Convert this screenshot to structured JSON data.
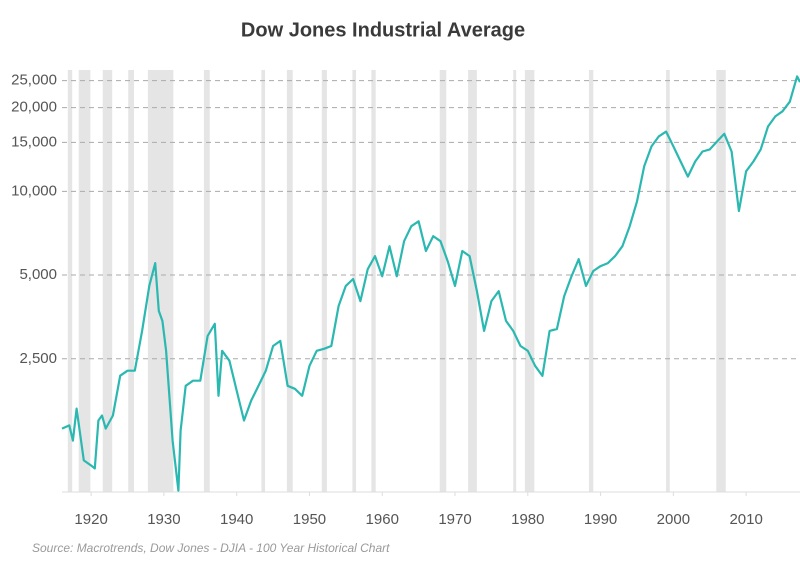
{
  "chart_data": {
    "type": "line",
    "title": "Dow Jones Industrial Average",
    "source": "Source: Macrotrends, Dow Jones - DJIA - 100 Year Historical Chart",
    "color": "#2bb8b1",
    "recession_color": "#e5e5e5",
    "log_scale": true,
    "grid": true,
    "x": [
      1916.0,
      1917.0,
      1917.5,
      1918.0,
      1919.0,
      1920.0,
      1920.5,
      1921.0,
      1921.5,
      1922.0,
      1923.0,
      1924.0,
      1925.0,
      1926.0,
      1927.0,
      1928.0,
      1928.8,
      1929.3,
      1929.8,
      1930.3,
      1931.2,
      1932.0,
      1932.3,
      1933.0,
      1934.0,
      1935.0,
      1936.0,
      1937.0,
      1937.5,
      1938.0,
      1939.0,
      1940.0,
      1941.0,
      1942.0,
      1943.0,
      1944.0,
      1945.0,
      1946.0,
      1947.0,
      1948.0,
      1949.0,
      1950.0,
      1951.0,
      1952.0,
      1953.0,
      1954.0,
      1955.0,
      1956.0,
      1957.0,
      1958.0,
      1959.0,
      1960.0,
      1961.0,
      1962.0,
      1963.0,
      1964.0,
      1965.0,
      1966.0,
      1967.0,
      1968.0,
      1969.0,
      1970.0,
      1971.0,
      1972.0,
      1973.0,
      1974.0,
      1975.0,
      1976.0,
      1977.0,
      1978.0,
      1979.0,
      1980.0,
      1981.0,
      1982.0,
      1983.0,
      1984.0,
      1985.0,
      1986.0,
      1987.0,
      1988.0,
      1989.0,
      1990.0,
      1991.0,
      1992.0,
      1993.0,
      1994.0,
      1995.0,
      1996.0,
      1997.0,
      1998.0,
      1999.0,
      2000.0,
      2001.0,
      2002.0,
      2003.0,
      2004.0,
      2005.0,
      2006.0,
      2007.0,
      2008.0,
      2009.0,
      2010.0,
      2011.0,
      2012.0,
      2013.0,
      2014.0,
      2015.0,
      2016.0,
      2017.0,
      2017.4
    ],
    "values": [
      1403,
      1440,
      1270,
      1655,
      1078,
      1034,
      1009,
      1500,
      1563,
      1403,
      1563,
      2173,
      2265,
      2265,
      3150,
      4570,
      5520,
      3715,
      3420,
      2670,
      1270,
      840,
      1380,
      2000,
      2085,
      2085,
      3020,
      3340,
      1840,
      2670,
      2460,
      1920,
      1500,
      1770,
      2000,
      2265,
      2780,
      2900,
      2000,
      1950,
      1840,
      2360,
      2670,
      2715,
      2780,
      3870,
      4570,
      4840,
      4030,
      5250,
      5850,
      4950,
      6350,
      4950,
      6615,
      7490,
      7800,
      6100,
      6900,
      6615,
      5610,
      4570,
      6100,
      5850,
      4380,
      3150,
      4030,
      4380,
      3420,
      3150,
      2780,
      2670,
      2360,
      2170,
      3150,
      3200,
      4200,
      4950,
      5700,
      4570,
      5170,
      5385,
      5520,
      5850,
      6350,
      7490,
      9200,
      12300,
      14500,
      15750,
      16400,
      14500,
      12800,
      11300,
      12800,
      13900,
      14150,
      15100,
      16100,
      13900,
      8500,
      11800,
      12800,
      14150,
      17100,
      18600,
      19400,
      21000,
      25900,
      24700
    ],
    "recessions": [
      [
        1916.8,
        1917.4
      ],
      [
        1918.3,
        1919.9
      ],
      [
        1921.6,
        1922.9
      ],
      [
        1925.1,
        1925.9
      ],
      [
        1927.8,
        1931.3
      ],
      [
        1935.5,
        1936.3
      ],
      [
        1943.4,
        1943.9
      ],
      [
        1946.9,
        1947.7
      ],
      [
        1951.7,
        1952.4
      ],
      [
        1955.9,
        1956.4
      ],
      [
        1958.5,
        1959.1
      ],
      [
        1967.9,
        1968.8
      ],
      [
        1971.8,
        1973.0
      ],
      [
        1978.0,
        1978.4
      ],
      [
        1979.6,
        1980.9
      ],
      [
        1988.4,
        1989.0
      ],
      [
        1999.0,
        1999.5
      ],
      [
        2005.9,
        2007.2
      ]
    ],
    "xlim": [
      1916.0,
      2017.4
    ],
    "xticks": [
      1920,
      1930,
      1940,
      1950,
      1960,
      1970,
      1980,
      1990,
      2000,
      2010
    ],
    "ylim": [
      830,
      27300
    ],
    "yticks": [
      {
        "value": 2500,
        "label": "2,500"
      },
      {
        "value": 5000,
        "label": "5,000"
      },
      {
        "value": 10000,
        "label": "10,000"
      },
      {
        "value": 15000,
        "label": "15,000"
      },
      {
        "value": 20000,
        "label": "20,000"
      },
      {
        "value": 25000,
        "label": "25,000"
      }
    ]
  }
}
